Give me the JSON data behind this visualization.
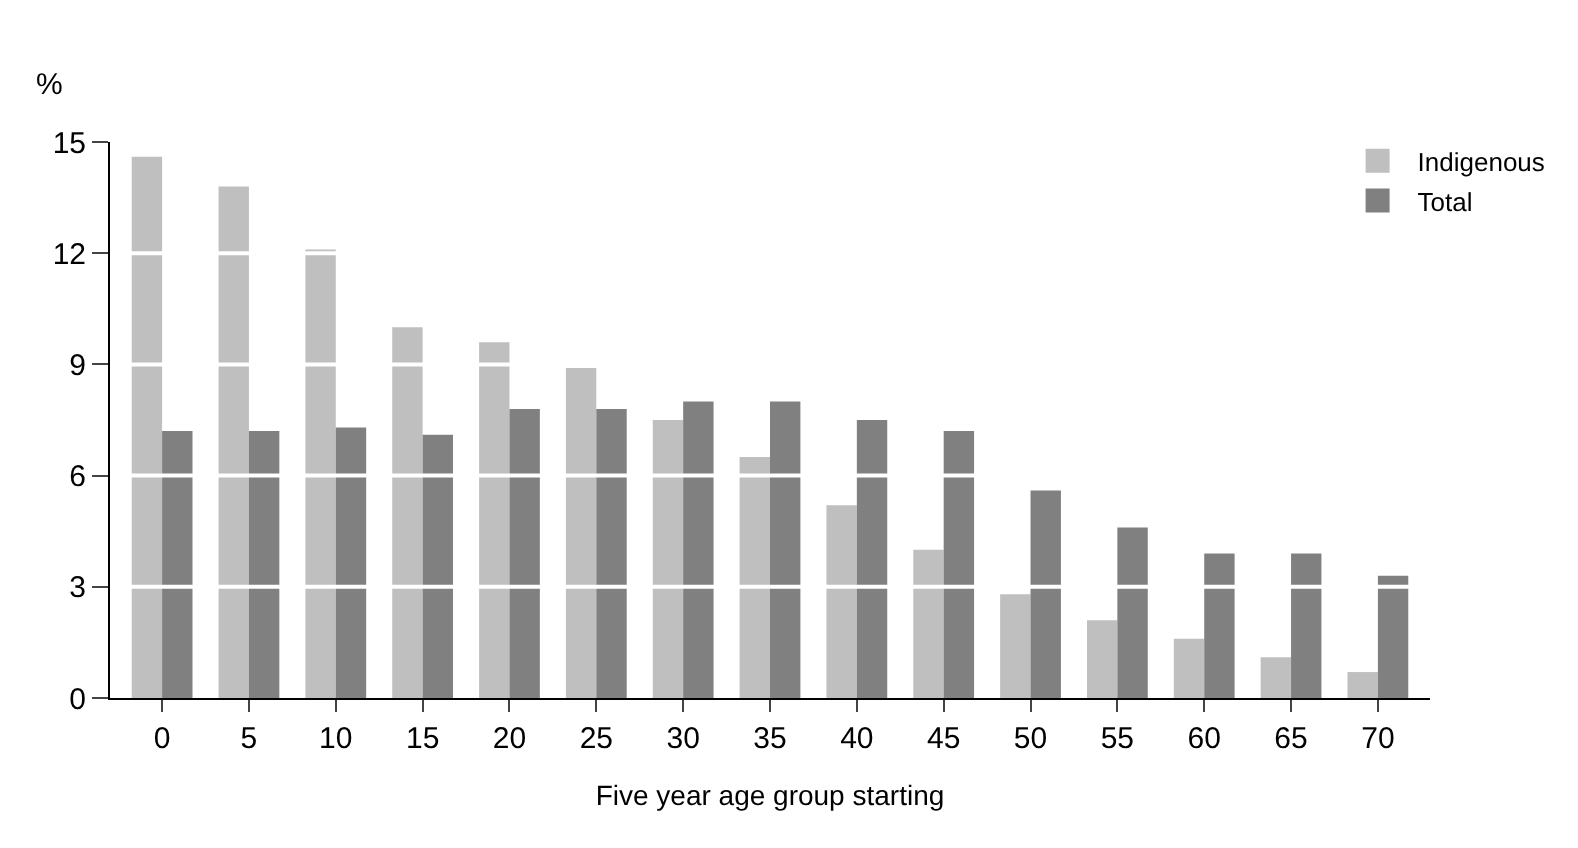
{
  "chart_data": {
    "type": "bar",
    "categories": [
      "0",
      "5",
      "10",
      "15",
      "20",
      "25",
      "30",
      "35",
      "40",
      "45",
      "50",
      "55",
      "60",
      "65",
      "70"
    ],
    "series": [
      {
        "name": "Indigenous",
        "color": "#bfbfbf",
        "values": [
          14.6,
          13.8,
          12.1,
          10.0,
          9.6,
          8.9,
          7.5,
          6.5,
          5.2,
          4.0,
          2.8,
          2.1,
          1.6,
          1.1,
          0.7
        ]
      },
      {
        "name": "Total",
        "color": "#808080",
        "values": [
          7.2,
          7.2,
          7.3,
          7.1,
          7.8,
          7.8,
          8.0,
          8.0,
          7.5,
          7.2,
          5.6,
          4.6,
          3.9,
          3.9,
          3.3
        ]
      }
    ],
    "xlabel": "Five year age group starting",
    "ylabel": "%",
    "ylim": [
      0,
      15
    ],
    "yticks": [
      0,
      3,
      6,
      9,
      12,
      15
    ],
    "grid": "y",
    "legend": "top right"
  }
}
